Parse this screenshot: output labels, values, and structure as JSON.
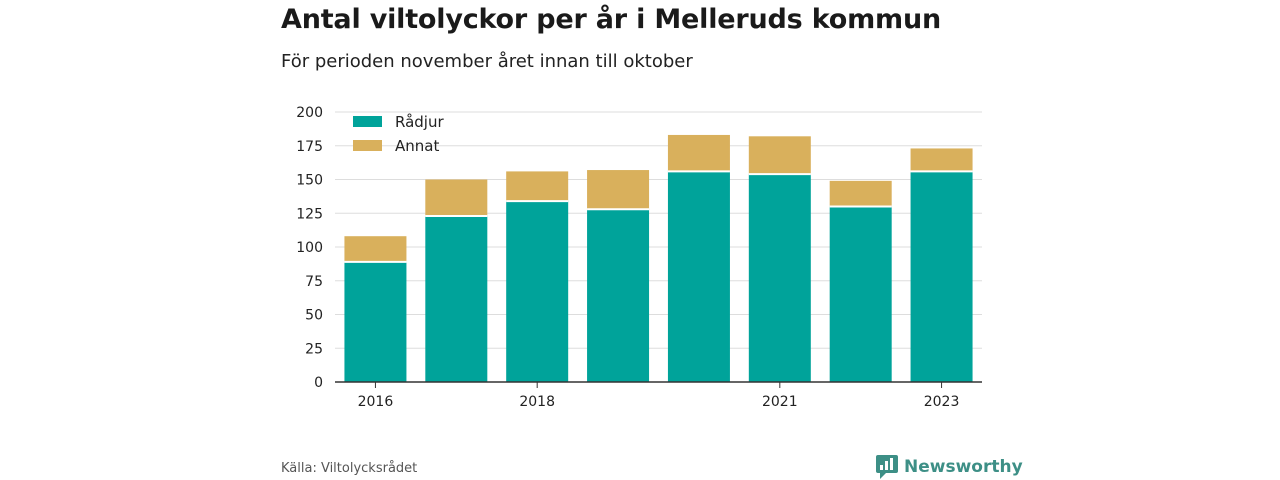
{
  "title": "Antal viltolyckor per år i Melleruds kommun",
  "subtitle": "För perioden november året innan till oktober",
  "source": "Källa: Viltolycksrådet",
  "brand": {
    "name": "Newsworthy",
    "icon": "newsworthy-logo-icon",
    "color": "#3d8f86"
  },
  "chart_data": {
    "type": "bar",
    "stacked": true,
    "categories": [
      "2016",
      "2017",
      "2018",
      "2019",
      "2020",
      "2021",
      "2022",
      "2023"
    ],
    "x_tick_labels": [
      "2016",
      "",
      "2018",
      "",
      "",
      "2021",
      "",
      "2023"
    ],
    "series": [
      {
        "name": "Rådjur",
        "color": "#00a39a",
        "values": [
          89,
          123,
          134,
          128,
          156,
          154,
          130,
          156
        ]
      },
      {
        "name": "Annat",
        "color": "#d9b05c",
        "values": [
          19,
          27,
          22,
          29,
          27,
          28,
          19,
          17
        ]
      }
    ],
    "ylim": [
      0,
      200
    ],
    "yticks": [
      0,
      25,
      50,
      75,
      100,
      125,
      150,
      175,
      200
    ],
    "grid": true,
    "legend_position": "top-left"
  }
}
